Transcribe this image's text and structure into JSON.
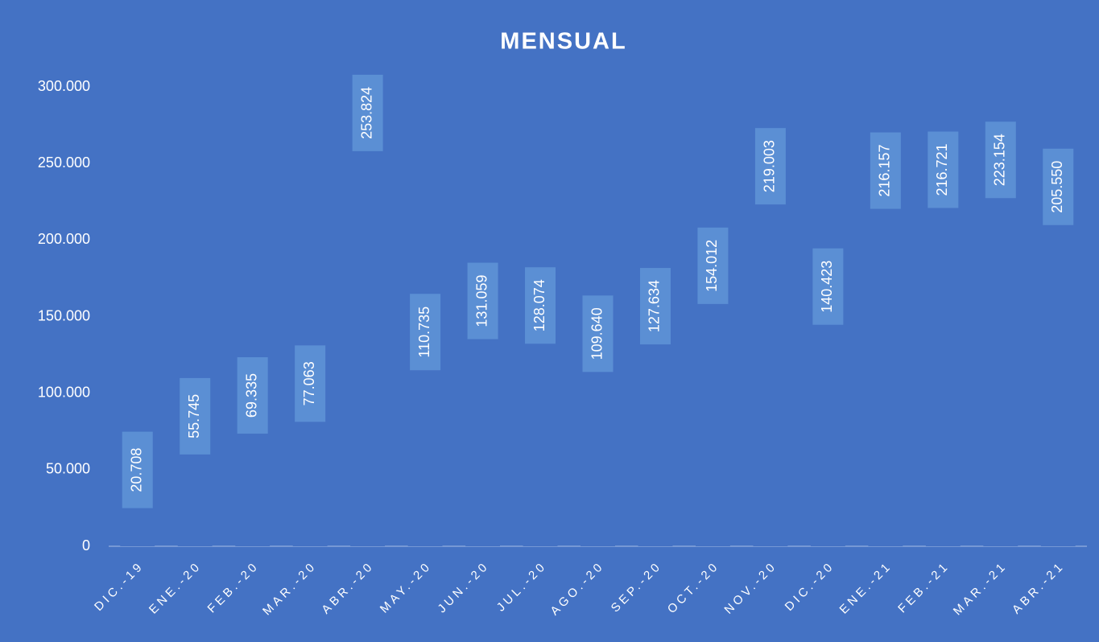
{
  "chart_data": {
    "type": "bar",
    "title": "MENSUAL",
    "categories": [
      "DIC.-19",
      "ENE.-20",
      "FEB.-20",
      "MAR.-20",
      "ABR.-20",
      "MAY.-20",
      "JUN.-20",
      "JUL.-20",
      "AGO.-20",
      "SEP.-20",
      "OCT.-20",
      "NOV.-20",
      "DIC.-20",
      "ENE.-21",
      "FEB.-21",
      "MAR.-21",
      "ABR.-21"
    ],
    "values": [
      20708,
      55745,
      69335,
      77063,
      253824,
      110735,
      131059,
      128074,
      109640,
      127634,
      154012,
      219003,
      140423,
      216157,
      216721,
      223154,
      205550
    ],
    "value_labels": [
      "20.708",
      "55.745",
      "69.335",
      "77.063",
      "253.824",
      "110.735",
      "131.059",
      "128.074",
      "109.640",
      "127.634",
      "154.012",
      "219.003",
      "140.423",
      "216.157",
      "216.721",
      "223.154",
      "205.550"
    ],
    "color": "#4472c4",
    "ylim": [
      0,
      300000
    ],
    "yticks": [
      0,
      {
        "value": 50000,
        "label": "50.000"
      },
      {
        "value": 100000,
        "label": "100.000"
      },
      {
        "value": 150000,
        "label": "150.000"
      },
      {
        "value": 200000,
        "label": "200.000"
      },
      {
        "value": 250000,
        "label": "250.000"
      },
      {
        "value": 300000,
        "label": "300.000"
      }
    ],
    "grid": false
  }
}
